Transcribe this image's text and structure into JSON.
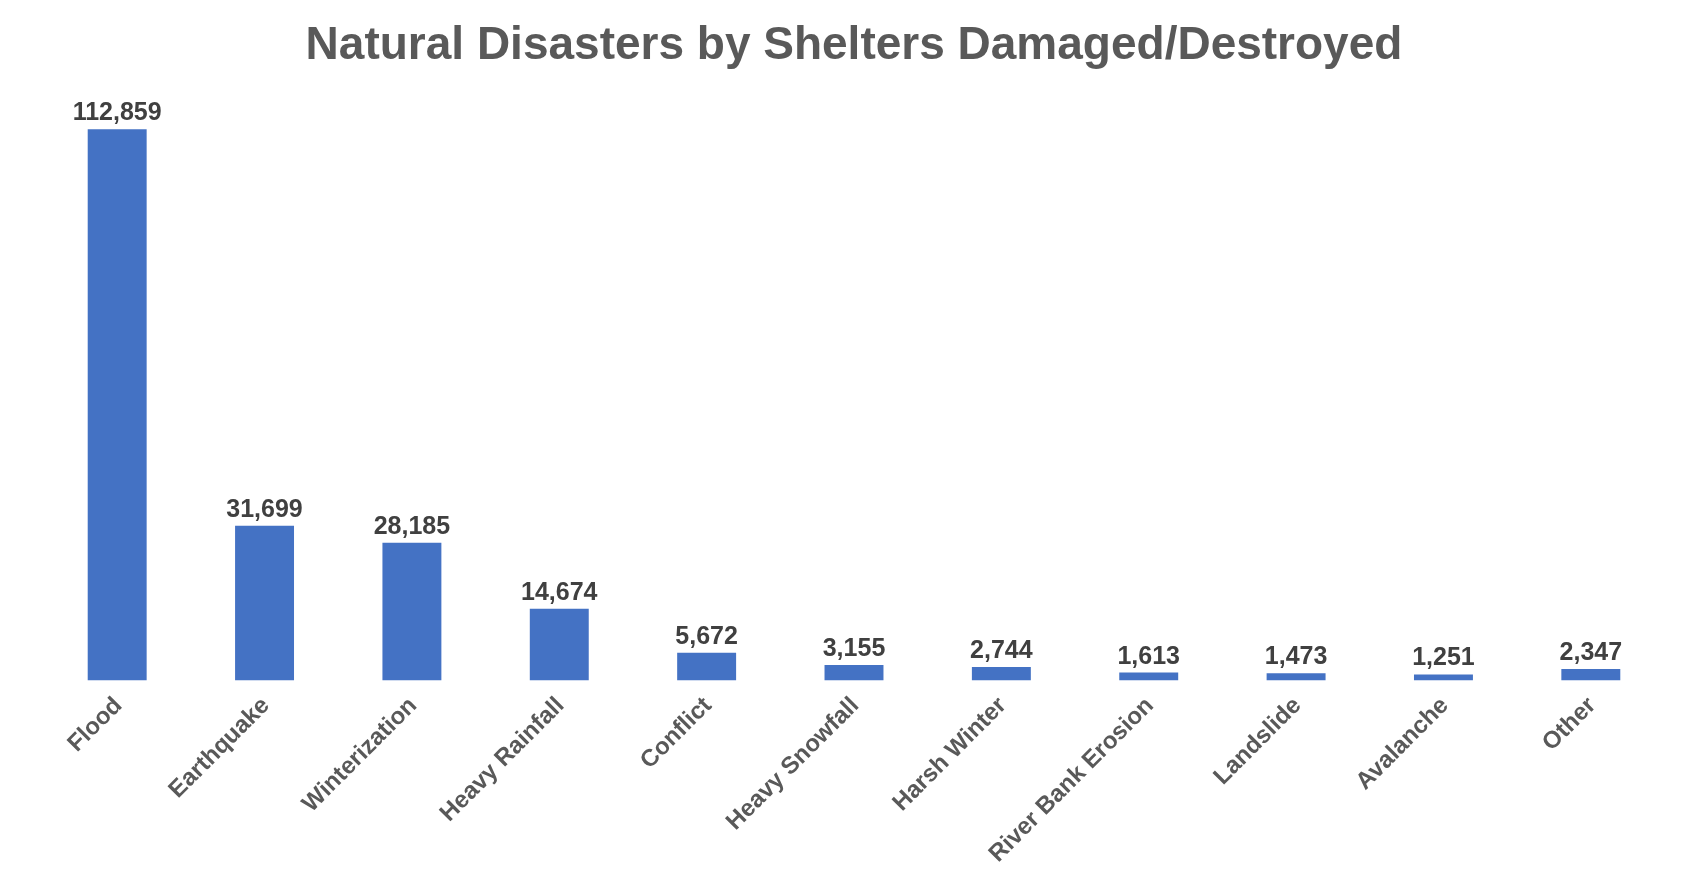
{
  "chart_data": {
    "type": "bar",
    "title": "Natural Disasters by Shelters Damaged/Destroyed",
    "categories": [
      "Flood",
      "Earthquake",
      "Winterization",
      "Heavy Rainfall",
      "Conflict",
      "Heavy Snowfall",
      "Harsh Winter",
      "River Bank Erosion",
      "Landslide",
      "Avalanche",
      "Other"
    ],
    "values": [
      112859,
      31699,
      28185,
      14674,
      5672,
      3155,
      2744,
      1613,
      1473,
      1251,
      2347
    ],
    "value_labels": [
      "112,859",
      "31,699",
      "28,185",
      "14,674",
      "5,672",
      "3,155",
      "2,744",
      "1,613",
      "1,473",
      "1,251",
      "2,347"
    ],
    "color": "#4472c4"
  }
}
